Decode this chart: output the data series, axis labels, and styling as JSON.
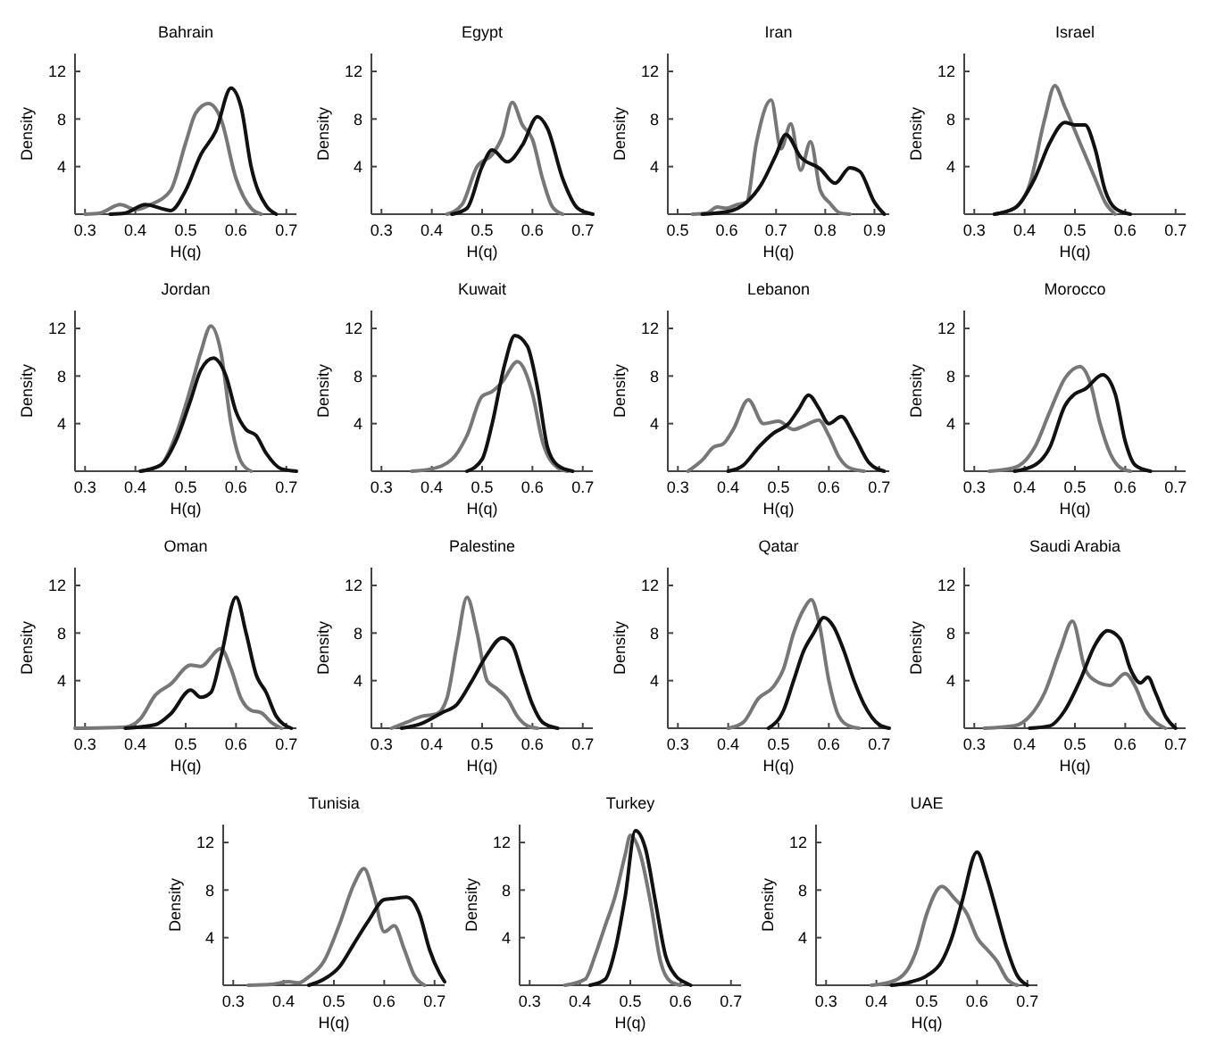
{
  "chart_data": [
    {
      "type": "line",
      "title": "Bahrain",
      "xlabel": "H(q)",
      "ylabel": "Density",
      "xlim": [
        0.28,
        0.72
      ],
      "xticks": [
        0.3,
        0.4,
        0.5,
        0.6,
        0.7
      ],
      "ylim": [
        0,
        13.5
      ],
      "yticks": [
        4,
        8,
        12
      ],
      "series": [
        {
          "color": "#777777",
          "x": [
            0.3,
            0.33,
            0.37,
            0.4,
            0.43,
            0.47,
            0.5,
            0.52,
            0.545,
            0.57,
            0.6,
            0.63,
            0.65
          ],
          "values": [
            0,
            0.1,
            0.8,
            0.4,
            0.8,
            2,
            6,
            8.5,
            9.3,
            8,
            3,
            0.5,
            0
          ]
        },
        {
          "color": "#111111",
          "x": [
            0.35,
            0.38,
            0.42,
            0.45,
            0.47,
            0.5,
            0.53,
            0.56,
            0.59,
            0.61,
            0.63,
            0.66,
            0.68
          ],
          "values": [
            0,
            0.1,
            0.8,
            0.5,
            0.3,
            2,
            5,
            7,
            10.6,
            9,
            4,
            0.7,
            0
          ]
        }
      ]
    },
    {
      "type": "line",
      "title": "Egypt",
      "xlabel": "H(q)",
      "ylabel": "Density",
      "xlim": [
        0.28,
        0.72
      ],
      "xticks": [
        0.3,
        0.4,
        0.5,
        0.6,
        0.7
      ],
      "ylim": [
        0,
        13.5
      ],
      "yticks": [
        4,
        8,
        12
      ],
      "series": [
        {
          "color": "#777777",
          "x": [
            0.43,
            0.46,
            0.49,
            0.52,
            0.54,
            0.56,
            0.58,
            0.6,
            0.62,
            0.64,
            0.66
          ],
          "values": [
            0,
            0.8,
            4,
            5,
            6.5,
            9.4,
            7.5,
            6.3,
            3,
            0.6,
            0
          ]
        },
        {
          "color": "#111111",
          "x": [
            0.44,
            0.47,
            0.5,
            0.52,
            0.55,
            0.58,
            0.61,
            0.63,
            0.66,
            0.69,
            0.72
          ],
          "values": [
            0,
            0.5,
            4,
            5.4,
            4.4,
            5.8,
            8.2,
            7.2,
            3,
            0.5,
            0
          ]
        }
      ]
    },
    {
      "type": "line",
      "title": "Iran",
      "xlabel": "H(q)",
      "ylabel": "Density",
      "xlim": [
        0.48,
        0.93
      ],
      "xticks": [
        0.5,
        0.6,
        0.7,
        0.8,
        0.9
      ],
      "ylim": [
        0,
        13.5
      ],
      "yticks": [
        4,
        8,
        12
      ],
      "series": [
        {
          "color": "#777777",
          "x": [
            0.53,
            0.56,
            0.58,
            0.6,
            0.62,
            0.64,
            0.66,
            0.69,
            0.71,
            0.73,
            0.75,
            0.77,
            0.79,
            0.81,
            0.83,
            0.85
          ],
          "values": [
            0,
            0.1,
            0.6,
            0.5,
            0.8,
            1,
            6,
            9.6,
            5.5,
            7.6,
            3.7,
            6.1,
            2,
            0.9,
            0.1,
            0
          ]
        },
        {
          "color": "#111111",
          "x": [
            0.55,
            0.6,
            0.64,
            0.67,
            0.7,
            0.72,
            0.75,
            0.79,
            0.82,
            0.85,
            0.87,
            0.9,
            0.92
          ],
          "values": [
            0,
            0.2,
            1,
            2.5,
            5,
            6.7,
            4.8,
            3.8,
            2.6,
            3.9,
            3.6,
            1,
            0
          ]
        }
      ]
    },
    {
      "type": "line",
      "title": "Israel",
      "xlabel": "H(q)",
      "ylabel": "Density",
      "xlim": [
        0.28,
        0.72
      ],
      "xticks": [
        0.3,
        0.4,
        0.5,
        0.6,
        0.7
      ],
      "ylim": [
        0,
        13.5
      ],
      "yticks": [
        4,
        8,
        12
      ],
      "series": [
        {
          "color": "#777777",
          "x": [
            0.34,
            0.38,
            0.41,
            0.44,
            0.46,
            0.48,
            0.51,
            0.54,
            0.56,
            0.58
          ],
          "values": [
            0,
            0.5,
            2.5,
            8,
            10.8,
            9,
            6,
            3,
            1,
            0
          ]
        },
        {
          "color": "#111111",
          "x": [
            0.34,
            0.38,
            0.42,
            0.45,
            0.48,
            0.5,
            0.52,
            0.54,
            0.56,
            0.58,
            0.61
          ],
          "values": [
            0,
            0.5,
            3,
            6,
            7.7,
            7.5,
            7.5,
            5.5,
            2,
            0.5,
            0
          ]
        }
      ]
    },
    {
      "type": "line",
      "title": "Jordan",
      "xlabel": "H(q)",
      "ylabel": "Density",
      "xlim": [
        0.28,
        0.72
      ],
      "xticks": [
        0.3,
        0.4,
        0.5,
        0.6,
        0.7
      ],
      "ylim": [
        0,
        13.5
      ],
      "yticks": [
        4,
        8,
        12
      ],
      "series": [
        {
          "color": "#777777",
          "x": [
            0.41,
            0.45,
            0.48,
            0.51,
            0.53,
            0.55,
            0.57,
            0.59,
            0.61,
            0.63
          ],
          "values": [
            0,
            0.5,
            3,
            7,
            10,
            12.2,
            10,
            4,
            0.8,
            0
          ]
        },
        {
          "color": "#111111",
          "x": [
            0.41,
            0.45,
            0.48,
            0.51,
            0.53,
            0.555,
            0.58,
            0.6,
            0.62,
            0.64,
            0.66,
            0.69,
            0.72
          ],
          "values": [
            0,
            0.5,
            2.5,
            6,
            8.5,
            9.5,
            8,
            5,
            3.5,
            3,
            1.5,
            0.2,
            0
          ]
        }
      ]
    },
    {
      "type": "line",
      "title": "Kuwait",
      "xlabel": "H(q)",
      "ylabel": "Density",
      "xlim": [
        0.28,
        0.72
      ],
      "xticks": [
        0.3,
        0.4,
        0.5,
        0.6,
        0.7
      ],
      "ylim": [
        0,
        13.5
      ],
      "yticks": [
        4,
        8,
        12
      ],
      "series": [
        {
          "color": "#777777",
          "x": [
            0.36,
            0.4,
            0.44,
            0.47,
            0.5,
            0.52,
            0.54,
            0.57,
            0.6,
            0.62,
            0.65,
            0.67
          ],
          "values": [
            0,
            0.2,
            1,
            3,
            6.3,
            6.7,
            7.5,
            9.2,
            6.5,
            2.5,
            0.3,
            0
          ]
        },
        {
          "color": "#111111",
          "x": [
            0.47,
            0.5,
            0.52,
            0.545,
            0.565,
            0.59,
            0.61,
            0.63,
            0.65,
            0.68
          ],
          "values": [
            0,
            1,
            4,
            9,
            11.4,
            10.5,
            7,
            2,
            0.5,
            0
          ]
        }
      ]
    },
    {
      "type": "line",
      "title": "Lebanon",
      "xlabel": "H(q)",
      "ylabel": "Density",
      "xlim": [
        0.28,
        0.72
      ],
      "xticks": [
        0.3,
        0.4,
        0.5,
        0.6,
        0.7
      ],
      "ylim": [
        0,
        13.5
      ],
      "yticks": [
        4,
        8,
        12
      ],
      "series": [
        {
          "color": "#777777",
          "x": [
            0.32,
            0.35,
            0.37,
            0.39,
            0.41,
            0.44,
            0.47,
            0.5,
            0.53,
            0.55,
            0.58,
            0.6,
            0.62,
            0.64,
            0.67
          ],
          "values": [
            0,
            1,
            2,
            2.3,
            3.5,
            6,
            4,
            4.2,
            3.5,
            3.8,
            4.3,
            3,
            1.2,
            0.3,
            0
          ]
        },
        {
          "color": "#111111",
          "x": [
            0.4,
            0.43,
            0.46,
            0.49,
            0.52,
            0.54,
            0.56,
            0.58,
            0.6,
            0.625,
            0.65,
            0.68,
            0.71
          ],
          "values": [
            0,
            0.5,
            2,
            3.2,
            4,
            5.2,
            6.4,
            5.3,
            4,
            4.6,
            3,
            0.7,
            0
          ]
        }
      ]
    },
    {
      "type": "line",
      "title": "Morocco",
      "xlabel": "H(q)",
      "ylabel": "Density",
      "xlim": [
        0.28,
        0.72
      ],
      "xticks": [
        0.3,
        0.4,
        0.5,
        0.6,
        0.7
      ],
      "ylim": [
        0,
        13.5
      ],
      "yticks": [
        4,
        8,
        12
      ],
      "series": [
        {
          "color": "#777777",
          "x": [
            0.33,
            0.38,
            0.42,
            0.45,
            0.48,
            0.51,
            0.53,
            0.55,
            0.57,
            0.59,
            0.61
          ],
          "values": [
            0,
            0.3,
            2,
            5,
            7.8,
            8.8,
            7.5,
            4,
            1.5,
            0.3,
            0
          ]
        },
        {
          "color": "#111111",
          "x": [
            0.38,
            0.42,
            0.45,
            0.48,
            0.5,
            0.52,
            0.555,
            0.58,
            0.6,
            0.62,
            0.65
          ],
          "values": [
            0,
            0.5,
            2,
            5.5,
            6.5,
            6.9,
            8.1,
            6.5,
            2.5,
            0.5,
            0
          ]
        }
      ]
    },
    {
      "type": "line",
      "title": "Oman",
      "xlabel": "H(q)",
      "ylabel": "Density",
      "xlim": [
        0.28,
        0.72
      ],
      "xticks": [
        0.3,
        0.4,
        0.5,
        0.6,
        0.7
      ],
      "ylim": [
        0,
        13.5
      ],
      "yticks": [
        4,
        8,
        12
      ],
      "series": [
        {
          "color": "#777777",
          "x": [
            0.28,
            0.38,
            0.41,
            0.44,
            0.47,
            0.51,
            0.53,
            0.57,
            0.59,
            0.61,
            0.63,
            0.65,
            0.67,
            0.69
          ],
          "values": [
            0,
            0.1,
            0.8,
            2.8,
            3.7,
            5.3,
            5.2,
            6.7,
            5,
            2.5,
            1.5,
            1.3,
            0.5,
            0
          ]
        },
        {
          "color": "#111111",
          "x": [
            0.38,
            0.44,
            0.47,
            0.51,
            0.53,
            0.55,
            0.57,
            0.6,
            0.62,
            0.64,
            0.66,
            0.68,
            0.71
          ],
          "values": [
            0,
            0.3,
            1.2,
            3.2,
            2.6,
            3,
            6,
            11,
            8,
            4.5,
            3,
            1,
            0
          ]
        }
      ]
    },
    {
      "type": "line",
      "title": "Palestine",
      "xlabel": "H(q)",
      "ylabel": "Density",
      "xlim": [
        0.28,
        0.72
      ],
      "xticks": [
        0.3,
        0.4,
        0.5,
        0.6,
        0.7
      ],
      "ylim": [
        0,
        13.5
      ],
      "yticks": [
        4,
        8,
        12
      ],
      "series": [
        {
          "color": "#777777",
          "x": [
            0.32,
            0.35,
            0.38,
            0.41,
            0.43,
            0.45,
            0.47,
            0.49,
            0.51,
            0.53,
            0.55,
            0.57,
            0.59,
            0.61
          ],
          "values": [
            0,
            0.5,
            1,
            1.2,
            2.5,
            7,
            11,
            8,
            4,
            3.3,
            2.5,
            1,
            0.2,
            0
          ]
        },
        {
          "color": "#111111",
          "x": [
            0.34,
            0.38,
            0.42,
            0.45,
            0.48,
            0.51,
            0.54,
            0.56,
            0.58,
            0.6,
            0.62,
            0.65
          ],
          "values": [
            0,
            0.4,
            1.3,
            2,
            4,
            6.2,
            7.6,
            7,
            4.5,
            2,
            0.5,
            0
          ]
        }
      ]
    },
    {
      "type": "line",
      "title": "Qatar",
      "xlabel": "H(q)",
      "ylabel": "Density",
      "xlim": [
        0.28,
        0.72
      ],
      "xticks": [
        0.3,
        0.4,
        0.5,
        0.6,
        0.7
      ],
      "ylim": [
        0,
        13.5
      ],
      "yticks": [
        4,
        8,
        12
      ],
      "series": [
        {
          "color": "#777777",
          "x": [
            0.4,
            0.43,
            0.46,
            0.49,
            0.51,
            0.53,
            0.55,
            0.565,
            0.58,
            0.6,
            0.62,
            0.64,
            0.66
          ],
          "values": [
            0,
            0.5,
            2.5,
            3.5,
            5,
            8,
            10,
            10.8,
            9,
            4,
            1,
            0.2,
            0
          ]
        },
        {
          "color": "#111111",
          "x": [
            0.48,
            0.51,
            0.53,
            0.55,
            0.57,
            0.59,
            0.61,
            0.63,
            0.65,
            0.67,
            0.7,
            0.72
          ],
          "values": [
            0,
            1.5,
            4,
            6.5,
            8,
            9.3,
            8.5,
            6.5,
            4,
            2,
            0.3,
            0
          ]
        }
      ]
    },
    {
      "type": "line",
      "title": "Saudi Arabia",
      "xlabel": "H(q)",
      "ylabel": "Density",
      "xlim": [
        0.28,
        0.72
      ],
      "xticks": [
        0.3,
        0.4,
        0.5,
        0.6,
        0.7
      ],
      "ylim": [
        0,
        13.5
      ],
      "yticks": [
        4,
        8,
        12
      ],
      "series": [
        {
          "color": "#777777",
          "x": [
            0.32,
            0.38,
            0.41,
            0.44,
            0.47,
            0.495,
            0.52,
            0.54,
            0.57,
            0.6,
            0.62,
            0.64,
            0.66,
            0.68
          ],
          "values": [
            0,
            0.2,
            1,
            3,
            6.5,
            9,
            5,
            4,
            3.6,
            4.6,
            3.5,
            1.5,
            0.5,
            0
          ]
        },
        {
          "color": "#111111",
          "x": [
            0.41,
            0.45,
            0.48,
            0.51,
            0.54,
            0.565,
            0.59,
            0.61,
            0.63,
            0.645,
            0.66,
            0.68,
            0.7
          ],
          "values": [
            0,
            0.2,
            1.5,
            4,
            7,
            8.2,
            7.5,
            5,
            3.8,
            4.3,
            3,
            1,
            0
          ]
        }
      ]
    },
    {
      "type": "line",
      "title": "Tunisia",
      "xlabel": "H(q)",
      "ylabel": "Density",
      "xlim": [
        0.28,
        0.72
      ],
      "xticks": [
        0.3,
        0.4,
        0.5,
        0.6,
        0.7
      ],
      "ylim": [
        0,
        13.5
      ],
      "yticks": [
        4,
        8,
        12
      ],
      "series": [
        {
          "color": "#777777",
          "x": [
            0.33,
            0.38,
            0.41,
            0.43,
            0.45,
            0.48,
            0.51,
            0.54,
            0.56,
            0.58,
            0.6,
            0.62,
            0.64,
            0.66,
            0.68
          ],
          "values": [
            0,
            0.1,
            0.3,
            0.2,
            0.7,
            2,
            5,
            8.5,
            9.8,
            7.5,
            4.5,
            5,
            3,
            0.8,
            0
          ]
        },
        {
          "color": "#111111",
          "x": [
            0.45,
            0.48,
            0.51,
            0.54,
            0.57,
            0.6,
            0.62,
            0.645,
            0.67,
            0.69,
            0.71,
            0.72
          ],
          "values": [
            0,
            0.5,
            1.5,
            3.5,
            5.5,
            7.2,
            7.3,
            7.4,
            6,
            3,
            1,
            0.3
          ]
        }
      ]
    },
    {
      "type": "line",
      "title": "Turkey",
      "xlabel": "H(q)",
      "ylabel": "Density",
      "xlim": [
        0.28,
        0.72
      ],
      "xticks": [
        0.3,
        0.4,
        0.5,
        0.6,
        0.7
      ],
      "ylim": [
        0,
        13.5
      ],
      "yticks": [
        4,
        8,
        12
      ],
      "series": [
        {
          "color": "#777777",
          "x": [
            0.37,
            0.41,
            0.43,
            0.45,
            0.47,
            0.49,
            0.5,
            0.52,
            0.54,
            0.56,
            0.58,
            0.6
          ],
          "values": [
            0,
            0.5,
            2.5,
            5,
            7.5,
            11,
            12.6,
            11,
            7,
            2,
            0.3,
            0
          ]
        },
        {
          "color": "#111111",
          "x": [
            0.42,
            0.45,
            0.47,
            0.49,
            0.51,
            0.53,
            0.55,
            0.57,
            0.59,
            0.61,
            0.62
          ],
          "values": [
            0,
            0.5,
            3,
            7.5,
            13,
            11.5,
            7,
            2.5,
            0.8,
            0.2,
            0
          ]
        }
      ]
    },
    {
      "type": "line",
      "title": "UAE",
      "xlabel": "H(q)",
      "ylabel": "Density",
      "xlim": [
        0.28,
        0.72
      ],
      "xticks": [
        0.3,
        0.4,
        0.5,
        0.6,
        0.7
      ],
      "ylim": [
        0,
        13.5
      ],
      "yticks": [
        4,
        8,
        12
      ],
      "series": [
        {
          "color": "#777777",
          "x": [
            0.39,
            0.43,
            0.46,
            0.48,
            0.5,
            0.53,
            0.555,
            0.58,
            0.6,
            0.62,
            0.64,
            0.66,
            0.68
          ],
          "values": [
            0,
            0.3,
            1.2,
            3,
            6,
            8.3,
            7.3,
            6,
            4,
            3,
            2,
            0.5,
            0
          ]
        },
        {
          "color": "#111111",
          "x": [
            0.43,
            0.47,
            0.5,
            0.53,
            0.55,
            0.57,
            0.6,
            0.62,
            0.64,
            0.66,
            0.68,
            0.7
          ],
          "values": [
            0,
            0.3,
            0.8,
            2,
            4,
            7,
            11.2,
            9,
            6,
            3,
            0.8,
            0
          ]
        }
      ]
    }
  ]
}
